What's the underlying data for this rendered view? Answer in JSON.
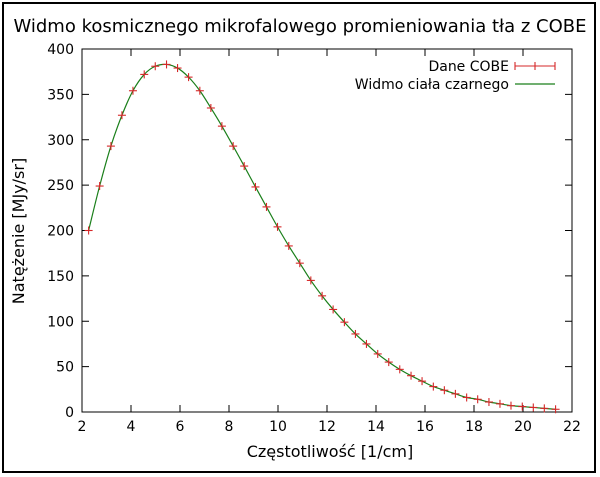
{
  "chart_data": {
    "type": "line",
    "title": "Widmo kosmicznego mikrofalowego promieniowania tła z COBE",
    "xlabel": "Częstotliwość  [1/cm]",
    "ylabel": "Natężenie  [MJy/sr]",
    "xlim": [
      2,
      22
    ],
    "ylim": [
      0,
      400
    ],
    "xticks": [
      2,
      4,
      6,
      8,
      10,
      12,
      14,
      16,
      18,
      20,
      22
    ],
    "yticks": [
      0,
      50,
      100,
      150,
      200,
      250,
      300,
      350,
      400
    ],
    "grid": false,
    "legend_position": "top-right",
    "colors": {
      "points": "#d62728",
      "curve": "#1a7f1a"
    },
    "series": [
      {
        "name": "Dane COBE",
        "style": "errorbar-points",
        "x": [
          2.27,
          2.72,
          3.18,
          3.63,
          4.08,
          4.54,
          4.99,
          5.45,
          5.9,
          6.35,
          6.81,
          7.26,
          7.71,
          8.17,
          8.62,
          9.08,
          9.53,
          9.98,
          10.44,
          10.89,
          11.34,
          11.8,
          12.25,
          12.71,
          13.16,
          13.61,
          14.07,
          14.52,
          14.97,
          15.43,
          15.88,
          16.34,
          16.79,
          17.24,
          17.7,
          18.15,
          18.61,
          19.06,
          19.51,
          19.97,
          20.42,
          20.87,
          21.33
        ],
        "y": [
          200,
          249,
          293,
          327,
          354,
          372,
          381,
          383,
          379,
          369,
          354,
          335,
          315,
          293,
          271,
          248,
          226,
          204,
          183,
          164,
          145,
          128,
          113,
          99,
          86,
          75,
          64,
          55,
          47,
          40,
          34,
          28,
          24,
          20,
          16,
          14,
          11,
          9,
          7,
          6,
          5,
          4,
          3
        ]
      },
      {
        "name": "Widmo ciała czarnego",
        "style": "line"
      }
    ]
  }
}
